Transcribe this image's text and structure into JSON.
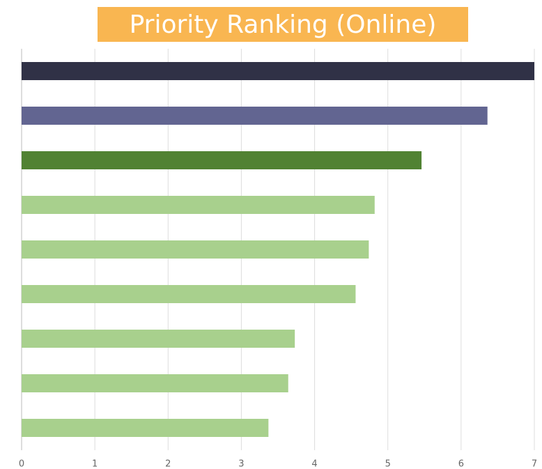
{
  "chart_data": {
    "type": "hbar",
    "title": "Priority Ranking (Online)",
    "values": [
      7.0,
      6.36,
      5.46,
      4.82,
      4.74,
      4.56,
      3.73,
      3.64,
      3.37
    ],
    "colors": [
      "#303146",
      "#626591",
      "#518233",
      "#a8d08d",
      "#a8d08d",
      "#a8d08d",
      "#a8d08d",
      "#a8d08d",
      "#a8d08d"
    ],
    "xlim": [
      0,
      7
    ],
    "xticks": [
      0,
      1,
      2,
      3,
      4,
      5,
      6,
      7
    ],
    "grid": true
  }
}
